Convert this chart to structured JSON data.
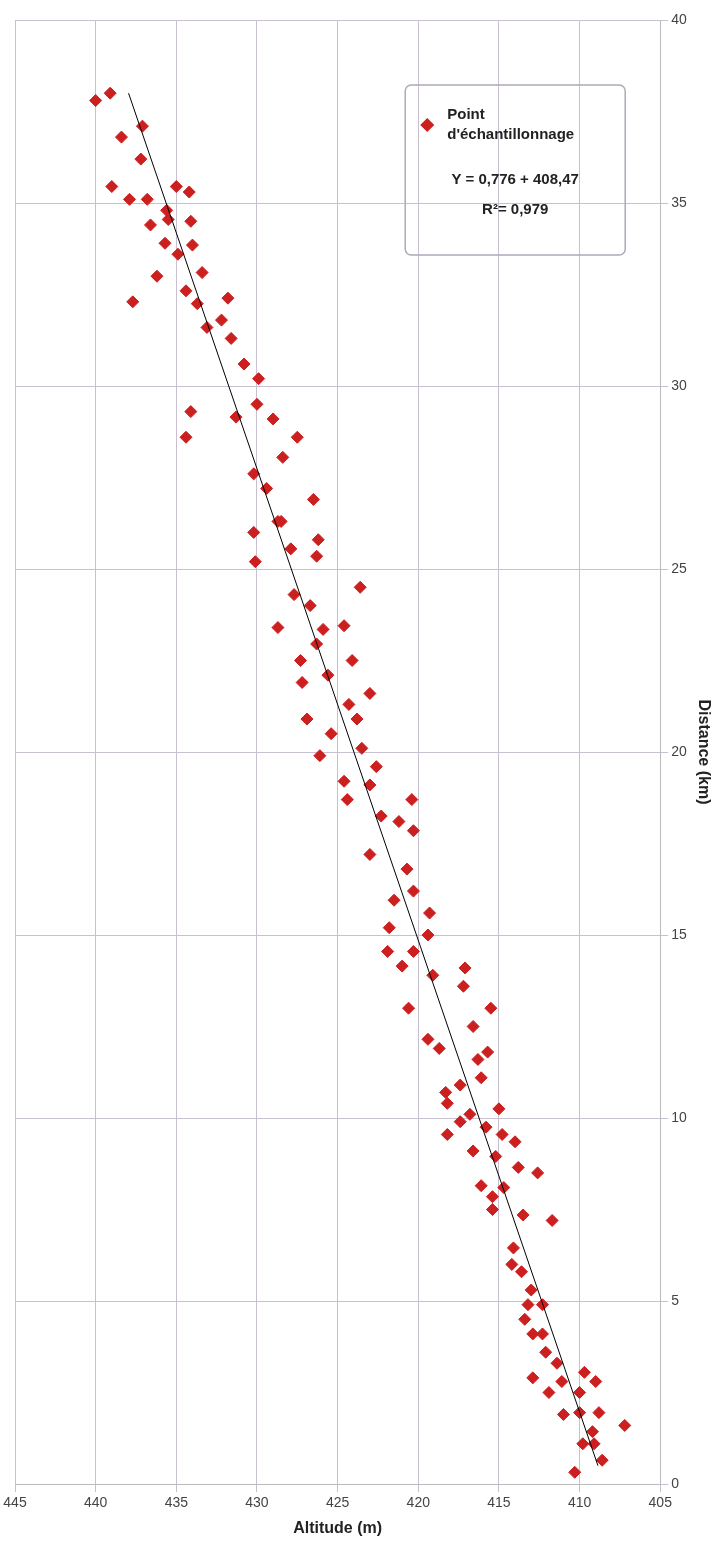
{
  "chart_data": {
    "type": "scatter",
    "xlabel": "Altitude (m)",
    "ylabel": "Distance (km)",
    "xlim": [
      445,
      405
    ],
    "xticks": [
      445,
      440,
      435,
      430,
      425,
      420,
      415,
      410,
      405
    ],
    "ylim": [
      0,
      40
    ],
    "yticks": [
      0,
      5,
      10,
      15,
      20,
      25,
      30,
      35,
      40
    ],
    "grid": true,
    "legend": "top right",
    "marker": "diamond",
    "annotations": [
      "Y = 0,776 + 408,47",
      "R²= 0,979"
    ],
    "series": [
      {
        "name": "Point d'échantillonnage",
        "color": "#cc1f1f",
        "values": [
          0.32,
          0.65,
          1.1,
          1.1,
          1.43,
          1.6,
          1.95,
          1.95,
          1.9,
          2.5,
          2.5,
          2.8,
          2.9,
          2.8,
          3.05,
          3.3,
          3.6,
          4.1,
          4.1,
          4.5,
          4.9,
          4.9,
          5.3,
          5.8,
          6.0,
          6.45,
          7.2,
          7.35,
          7.5,
          7.85,
          8.15,
          8.1,
          8.5,
          8.65,
          8.95,
          9.1,
          9.35,
          9.55,
          9.75,
          9.55,
          9.9,
          10.1,
          10.25,
          10.4,
          10.7,
          11.1,
          10.9,
          11.8,
          11.6,
          11.9,
          12.15,
          12.5,
          13.0,
          13.0,
          13.6,
          14.1,
          13.9,
          14.15,
          14.55,
          14.55,
          15.0,
          15.2,
          15.6,
          15.95,
          16.2,
          16.8,
          17.2,
          17.85,
          18.1,
          18.7,
          18.25,
          18.7,
          19.1,
          19.2,
          19.6,
          19.9,
          20.1,
          20.5,
          20.9,
          20.9,
          21.3,
          21.6,
          21.9,
          22.1,
          22.5,
          22.5,
          22.95,
          23.45,
          23.4,
          23.35,
          24.0,
          24.5,
          24.3,
          25.2,
          25.35,
          25.55,
          26.0,
          25.8,
          26.3,
          26.3,
          26.9,
          28.6,
          27.6,
          29.1,
          28.6,
          29.3,
          29.15,
          29.5,
          30.2,
          30.6,
          31.3,
          31.8,
          31.6,
          32.4,
          27.2,
          28.05,
          32.3,
          32.25,
          32.6,
          33.1,
          33.0,
          33.6,
          33.9,
          33.85,
          34.55,
          34.5,
          34.4,
          34.8,
          35.45,
          35.1,
          35.1,
          35.45,
          35.3,
          36.2,
          36.8,
          37.1,
          37.8,
          38.0
        ],
        "x": [
          410.3,
          408.6,
          409.8,
          409.1,
          409.2,
          407.2,
          408.8,
          410.0,
          411.0,
          411.9,
          410.0,
          411.1,
          412.9,
          409.0,
          409.7,
          411.4,
          412.1,
          412.3,
          412.9,
          413.4,
          413.2,
          412.3,
          413.0,
          413.6,
          414.2,
          414.1,
          411.7,
          413.5,
          415.4,
          415.4,
          416.1,
          414.7,
          412.6,
          413.8,
          415.2,
          416.6,
          414.0,
          414.8,
          415.8,
          418.2,
          417.4,
          416.8,
          415.0,
          418.2,
          418.3,
          416.1,
          417.4,
          415.7,
          416.3,
          418.7,
          419.4,
          416.6,
          415.5,
          420.6,
          417.2,
          417.1,
          419.1,
          421.0,
          421.9,
          420.3,
          419.4,
          421.8,
          419.3,
          421.5,
          420.3,
          420.7,
          423.0,
          420.3,
          421.2,
          420.4,
          422.3,
          424.4,
          423.0,
          424.6,
          422.6,
          426.1,
          423.5,
          425.4,
          426.9,
          423.8,
          424.3,
          423.0,
          427.2,
          425.6,
          424.1,
          427.3,
          426.3,
          424.6,
          428.7,
          425.9,
          426.7,
          423.6,
          427.7,
          430.1,
          426.3,
          427.9,
          430.2,
          426.2,
          428.5,
          428.7,
          426.5,
          427.5,
          430.2,
          429.0,
          434.4,
          434.1,
          431.3,
          430.0,
          429.9,
          430.8,
          431.6,
          432.2,
          433.1,
          431.8,
          429.4,
          428.4,
          437.7,
          433.7,
          434.4,
          433.4,
          436.2,
          434.9,
          435.7,
          434.0,
          435.5,
          434.1,
          436.6,
          435.6,
          435.0,
          436.8,
          437.9,
          439.0,
          434.2,
          437.2,
          438.4,
          437.1,
          440.0,
          439.1
        ]
      },
      {
        "type": "line",
        "color": "#000000",
        "marker": "none",
        "x": [
          408.86,
          437.96
        ],
        "values": [
          0.5,
          38
        ]
      }
    ]
  }
}
